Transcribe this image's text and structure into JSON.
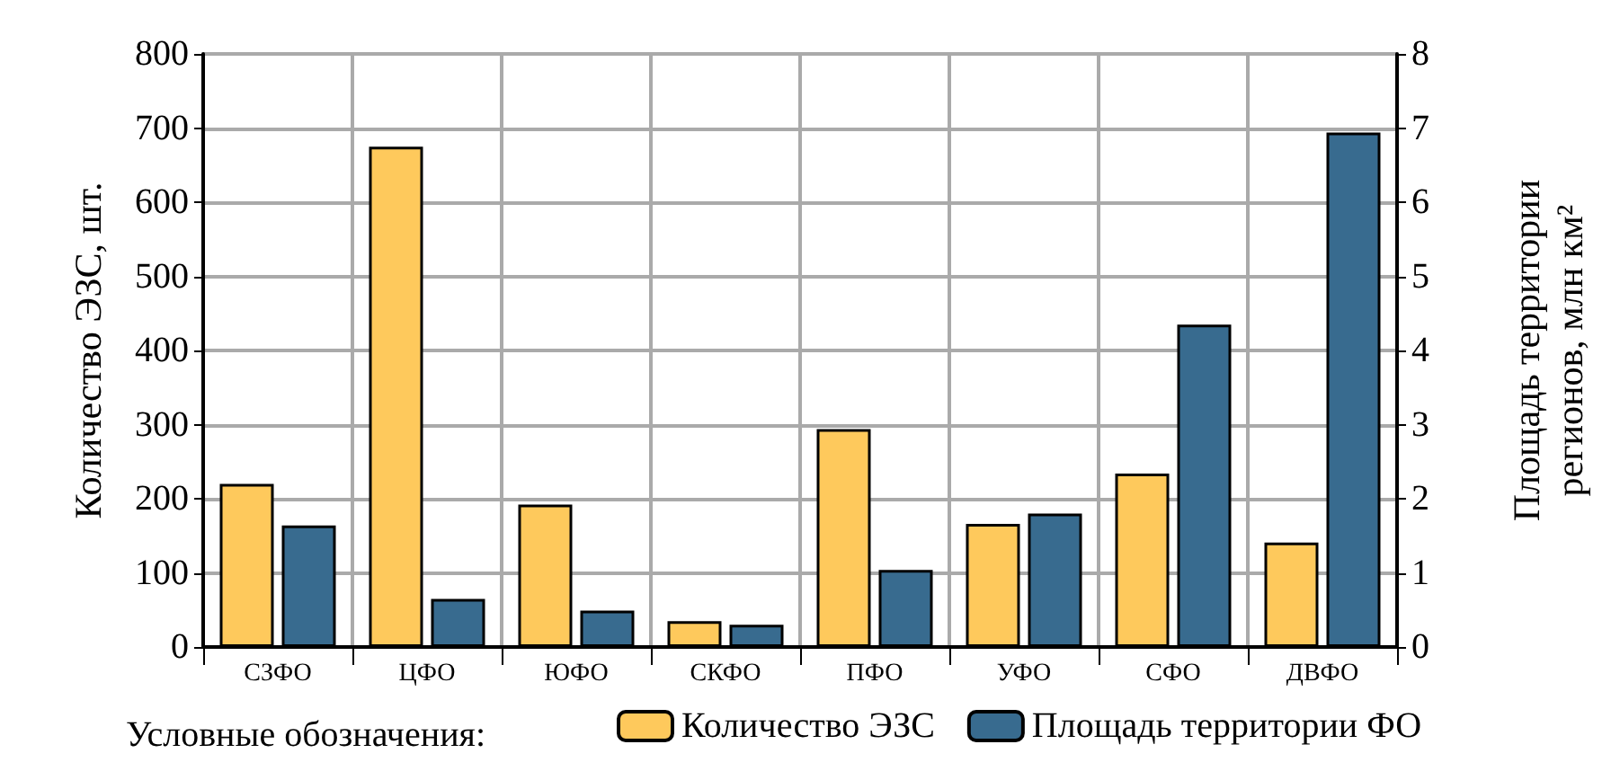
{
  "chart_data": {
    "type": "bar",
    "ylabel": "Количество ЭЗС, шт.",
    "y2label": "Площадь территории\nрегионов, млн км²",
    "legend_title": "Условные обозначения:",
    "categories": [
      "СЗФО",
      "ЦФО",
      "ЮФО",
      "СКФО",
      "ПФО",
      "УФО",
      "СФО",
      "ДВФО"
    ],
    "series": [
      {
        "name": "Количество ЭЗС",
        "color": "#fec95c",
        "values": [
          220,
          675,
          192,
          35,
          294,
          166,
          234,
          141
        ]
      },
      {
        "name": "Площадь территории ФО",
        "color": "#386b8f",
        "axis": "y2",
        "values": [
          1.64,
          0.65,
          0.49,
          0.3,
          1.04,
          1.8,
          4.35,
          6.94
        ]
      }
    ],
    "ylim": [
      0,
      800
    ],
    "yticks": [
      0,
      100,
      200,
      300,
      400,
      500,
      600,
      700,
      800
    ],
    "y2lim": [
      0,
      8
    ],
    "y2ticks": [
      0,
      1,
      2,
      3,
      4,
      5,
      6,
      7,
      8
    ],
    "grid": true,
    "legend": "bottom"
  }
}
